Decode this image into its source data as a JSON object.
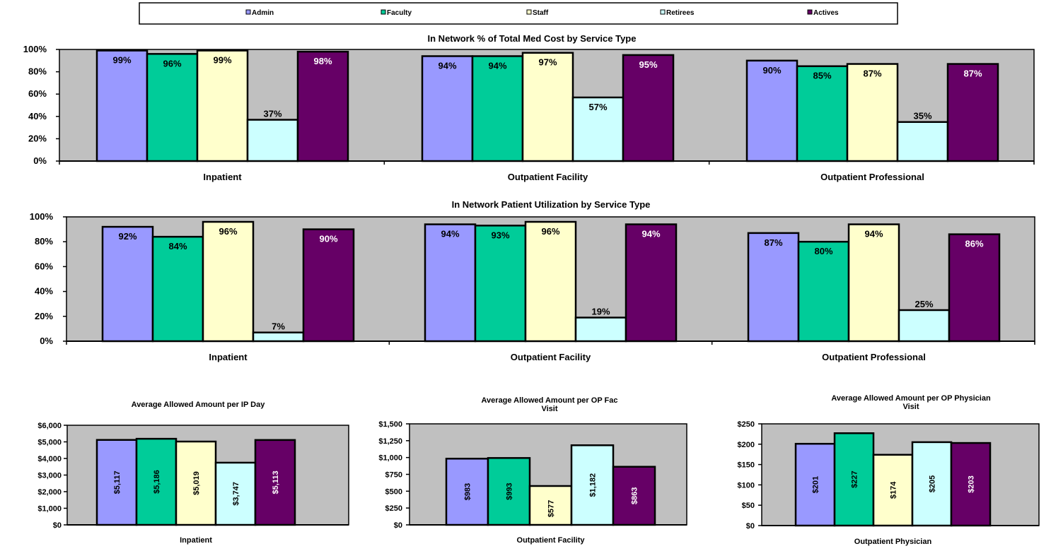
{
  "legend": [
    {
      "name": "Admin",
      "color": "#9999ff"
    },
    {
      "name": "Faculty",
      "color": "#00cc99"
    },
    {
      "name": "Staff",
      "color": "#ffffcc"
    },
    {
      "name": "Retirees",
      "color": "#ccffff"
    },
    {
      "name": "Actives",
      "color": "#660066"
    }
  ],
  "chart_data": [
    {
      "type": "bar",
      "title": "In Network % of Total Med Cost by Service Type",
      "categories": [
        "Inpatient",
        "Outpatient Facility",
        "Outpatient Professional"
      ],
      "series": [
        {
          "name": "Admin",
          "values": [
            99,
            94,
            90
          ],
          "labels": [
            "99%",
            "94%",
            "90%"
          ]
        },
        {
          "name": "Faculty",
          "values": [
            96,
            94,
            85
          ],
          "labels": [
            "96%",
            "94%",
            "85%"
          ]
        },
        {
          "name": "Staff",
          "values": [
            99,
            97,
            87
          ],
          "labels": [
            "99%",
            "97%",
            "87%"
          ]
        },
        {
          "name": "Retirees",
          "values": [
            37,
            57,
            35
          ],
          "labels": [
            "37%",
            "57%",
            "35%"
          ]
        },
        {
          "name": "Actives",
          "values": [
            98,
            95,
            87
          ],
          "labels": [
            "98%",
            "95%",
            "87%"
          ]
        }
      ],
      "ylim": [
        0,
        100
      ],
      "yticks": [
        0,
        20,
        40,
        60,
        80,
        100
      ],
      "ytick_labels": [
        "0%",
        "20%",
        "40%",
        "60%",
        "80%",
        "100%"
      ],
      "grid": false,
      "legend_position": "top"
    },
    {
      "type": "bar",
      "title": "In Network Patient Utilization by Service Type",
      "categories": [
        "Inpatient",
        "Outpatient Facility",
        "Outpatient Professional"
      ],
      "series": [
        {
          "name": "Admin",
          "values": [
            92,
            94,
            87
          ],
          "labels": [
            "92%",
            "94%",
            "87%"
          ]
        },
        {
          "name": "Faculty",
          "values": [
            84,
            93,
            80
          ],
          "labels": [
            "84%",
            "93%",
            "80%"
          ]
        },
        {
          "name": "Staff",
          "values": [
            96,
            96,
            94
          ],
          "labels": [
            "96%",
            "96%",
            "94%"
          ]
        },
        {
          "name": "Retirees",
          "values": [
            7,
            19,
            25
          ],
          "labels": [
            "7%",
            "19%",
            "25%"
          ]
        },
        {
          "name": "Actives",
          "values": [
            90,
            94,
            86
          ],
          "labels": [
            "90%",
            "94%",
            "86%"
          ]
        }
      ],
      "ylim": [
        0,
        100
      ],
      "yticks": [
        0,
        20,
        40,
        60,
        80,
        100
      ],
      "ytick_labels": [
        "0%",
        "20%",
        "40%",
        "60%",
        "80%",
        "100%"
      ],
      "grid": false
    },
    {
      "type": "bar",
      "title": "Average Allowed Amount per IP Day",
      "categories": [
        "Inpatient"
      ],
      "series": [
        {
          "name": "Admin",
          "values": [
            5117
          ],
          "labels": [
            "$5,117"
          ]
        },
        {
          "name": "Faculty",
          "values": [
            5186
          ],
          "labels": [
            "$5,186"
          ]
        },
        {
          "name": "Staff",
          "values": [
            5019
          ],
          "labels": [
            "$5,019"
          ]
        },
        {
          "name": "Retirees",
          "values": [
            3747
          ],
          "labels": [
            "$3,747"
          ]
        },
        {
          "name": "Actives",
          "values": [
            5113
          ],
          "labels": [
            "$5,113"
          ]
        }
      ],
      "ylim": [
        0,
        6000
      ],
      "yticks": [
        0,
        1000,
        2000,
        3000,
        4000,
        5000,
        6000
      ],
      "ytick_labels": [
        "$0",
        "$1,000",
        "$2,000",
        "$3,000",
        "$4,000",
        "$5,000",
        "$6,000"
      ],
      "grid": false
    },
    {
      "type": "bar",
      "title": "Average Allowed Amount per OP Fac Visit",
      "categories": [
        "Outpatient Facility"
      ],
      "series": [
        {
          "name": "Admin",
          "values": [
            983
          ],
          "labels": [
            "$983"
          ]
        },
        {
          "name": "Faculty",
          "values": [
            993
          ],
          "labels": [
            "$993"
          ]
        },
        {
          "name": "Staff",
          "values": [
            577
          ],
          "labels": [
            "$577"
          ]
        },
        {
          "name": "Retirees",
          "values": [
            1182
          ],
          "labels": [
            "$1,182"
          ]
        },
        {
          "name": "Actives",
          "values": [
            863
          ],
          "labels": [
            "$863"
          ]
        }
      ],
      "ylim": [
        0,
        1500
      ],
      "yticks": [
        0,
        250,
        500,
        750,
        1000,
        1250,
        1500
      ],
      "ytick_labels": [
        "$0",
        "$250",
        "$500",
        "$750",
        "$1,000",
        "$1,250",
        "$1,500"
      ],
      "grid": false
    },
    {
      "type": "bar",
      "title": "Average Allowed Amount per OP Physician Visit",
      "categories": [
        "Outpatient Physician"
      ],
      "series": [
        {
          "name": "Admin",
          "values": [
            201
          ],
          "labels": [
            "$201"
          ]
        },
        {
          "name": "Faculty",
          "values": [
            227
          ],
          "labels": [
            "$227"
          ]
        },
        {
          "name": "Staff",
          "values": [
            174
          ],
          "labels": [
            "$174"
          ]
        },
        {
          "name": "Retirees",
          "values": [
            205
          ],
          "labels": [
            "$205"
          ]
        },
        {
          "name": "Actives",
          "values": [
            203
          ],
          "labels": [
            "$203"
          ]
        }
      ],
      "ylim": [
        0,
        250
      ],
      "yticks": [
        0,
        50,
        100,
        150,
        200,
        250
      ],
      "ytick_labels": [
        "$0",
        "$50",
        "$100",
        "$150",
        "$200",
        "$250"
      ],
      "grid": false
    }
  ]
}
